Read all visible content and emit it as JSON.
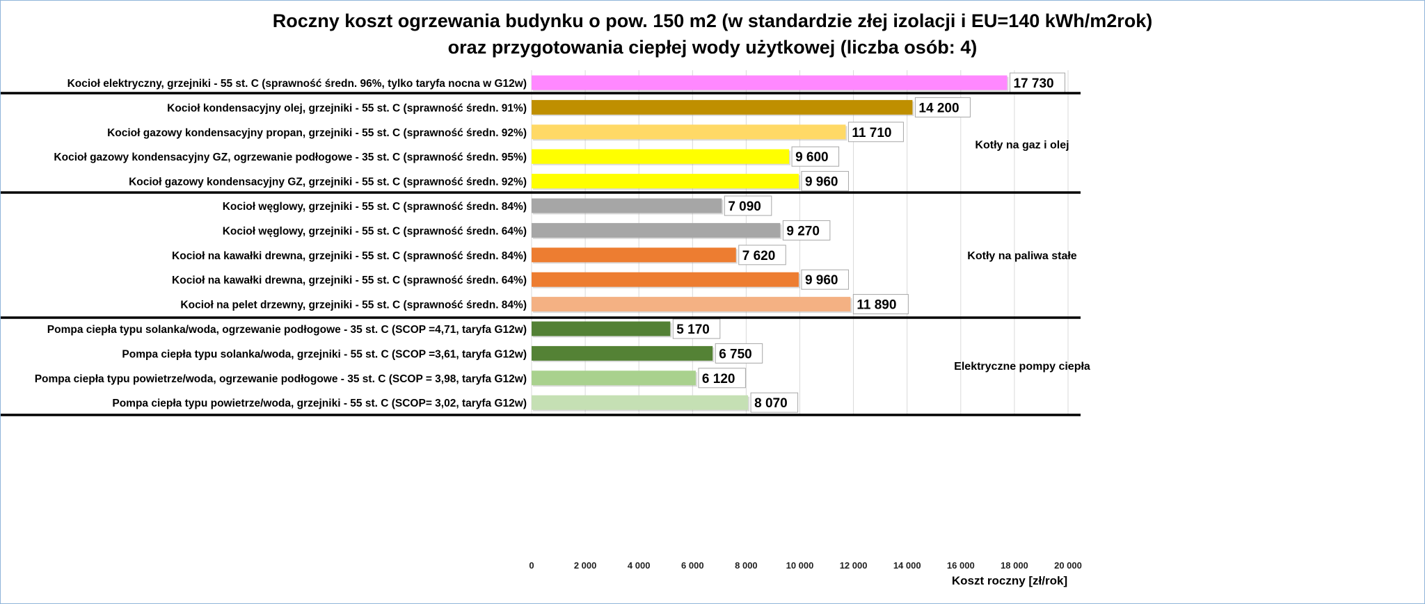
{
  "chart_data": {
    "type": "bar",
    "orientation": "horizontal",
    "title": [
      "Roczny koszt ogrzewania budynku o pow. 150 m2 (w standardzie złej izolacji i EU=140 kWh/m2rok)",
      "oraz przygotowania ciepłej wody użytkowej (liczba osób: 4)"
    ],
    "xlabel": "Koszt roczny [zł/rok]",
    "ylabel": "",
    "xlim": [
      0,
      20000
    ],
    "xticks": [
      "0",
      "2 000",
      "4 000",
      "6 000",
      "8 000",
      "10 000",
      "12 000",
      "14 000",
      "16 000",
      "18 000",
      "20 000"
    ],
    "grid": "vertical",
    "categories": [
      "Kocioł  elektryczny,  grzejniki - 55 st. C  (sprawność średn. 96%, tylko taryfa nocna w G12w)",
      "Kocioł  kondensacyjny olej,  grzejniki - 55 st. C (sprawność średn. 91%)",
      "Kocioł gazowy kondensacyjny propan, grzejniki - 55 st. C (sprawność średn. 92%)",
      "Kocioł gazowy kondensacyjny GZ, ogrzewanie podłogowe - 35 st. C (sprawność średn. 95%)",
      "Kocioł gazowy kondensacyjny GZ, grzejniki - 55 st. C (sprawność średn. 92%)",
      "Kocioł węglowy,  grzejniki - 55 st. C (sprawność średn. 84%)",
      "Kocioł węglowy,  grzejniki - 55 st. C (sprawność średn. 64%)",
      "Kocioł na kawałki drewna, grzejniki - 55 st. C (sprawność średn. 84%)",
      "Kocioł na kawałki drewna, grzejniki - 55 st. C (sprawność średn. 64%)",
      "Kocioł na pelet drzewny, grzejniki - 55 st. C (sprawność średn. 84%)",
      "Pompa ciepła typu solanka/woda, ogrzewanie podłogowe - 35 st. C (SCOP =4,71, taryfa G12w)",
      "Pompa ciepła typu solanka/woda, grzejniki - 55 st. C (SCOP =3,61, taryfa G12w)",
      "Pompa ciepła typu powietrze/woda, ogrzewanie podłogowe - 35 st. C (SCOP = 3,98, taryfa G12w)",
      "Pompa ciepła typu powietrze/woda, grzejniki - 55 st. C (SCOP= 3,02, taryfa G12w)"
    ],
    "values": [
      17730,
      14200,
      11710,
      9600,
      9960,
      7090,
      9270,
      7620,
      9960,
      11890,
      5170,
      6750,
      6120,
      8070
    ],
    "data_labels": [
      "17 730",
      "14 200",
      "11 710",
      "9 600",
      "9 960",
      "7 090",
      "9 270",
      "7 620",
      "9 960",
      "11 890",
      "5 170",
      "6 750",
      "6 120",
      "8 070"
    ],
    "colors": [
      "#ff88ff",
      "#bf8f00",
      "#ffd966",
      "#ffff00",
      "#ffff00",
      "#a6a6a6",
      "#a6a6a6",
      "#ed7d31",
      "#ed7d31",
      "#f4b183",
      "#538135",
      "#548235",
      "#a9d18e",
      "#c5e0b4"
    ],
    "groups": [
      {
        "label": "",
        "rows": [
          0,
          0
        ]
      },
      {
        "label": "Kotły na gaz i olej",
        "rows": [
          1,
          4
        ]
      },
      {
        "label": "Kotły na paliwa stałe",
        "rows": [
          5,
          9
        ]
      },
      {
        "label": "Elektryczne pompy ciepła",
        "rows": [
          10,
          13
        ]
      }
    ]
  }
}
